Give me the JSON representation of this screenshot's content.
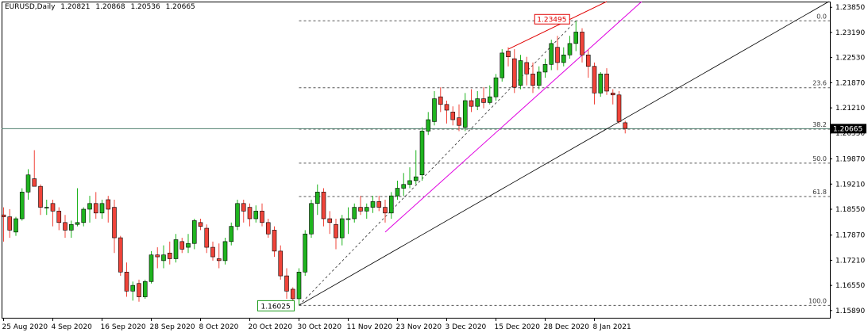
{
  "header": {
    "symbol": "EURUSD,Daily",
    "open": "1.20821",
    "high": "1.20868",
    "low": "1.20536",
    "close": "1.20665"
  },
  "price_scale": {
    "labels": [
      "1.23850",
      "1.23190",
      "1.22530",
      "1.21870",
      "1.21210",
      "1.20550",
      "1.19870",
      "1.19210",
      "1.18550",
      "1.17870",
      "1.17210",
      "1.16550",
      "1.15890"
    ],
    "current_price": "1.20665"
  },
  "time_scale": {
    "labels": [
      "25 Aug 2020",
      "4 Sep 2020",
      "16 Sep 2020",
      "28 Sep 2020",
      "8 Oct 2020",
      "20 Oct 2020",
      "30 Oct 2020",
      "11 Nov 2020",
      "23 Nov 2020",
      "3 Dec 2020",
      "15 Dec 2020",
      "28 Dec 2020",
      "8 Jan 2021"
    ]
  },
  "fibonacci": {
    "levels": [
      {
        "label": "0.0",
        "price": 1.23495
      },
      {
        "label": "23.6",
        "price": 1.21738
      },
      {
        "label": "38.2",
        "price": 1.20652
      },
      {
        "label": "50.0",
        "price": 1.1976
      },
      {
        "label": "61.8",
        "price": 1.18882
      },
      {
        "label": "100.0",
        "price": 1.16025
      }
    ]
  },
  "annotations": {
    "high_label": "1.23495",
    "low_label": "1.16025"
  },
  "colors": {
    "bull": "#1fb41f",
    "bear": "#f0443a",
    "outline": "#000000",
    "fib": "#555555",
    "trend_black": "#000000",
    "trend_magenta": "#e000e0",
    "trend_red": "#e00000",
    "current_line": "#4f7f6f",
    "high_box": "#e00000",
    "low_box": "#1a9a1a"
  },
  "chart_data": {
    "type": "candlestick",
    "timeframe": "Daily",
    "ylim": [
      1.157,
      1.24
    ],
    "candles": [
      {
        "o": 1.184,
        "h": 1.186,
        "l": 1.177,
        "c": 1.1835
      },
      {
        "o": 1.1835,
        "h": 1.1855,
        "l": 1.178,
        "c": 1.18
      },
      {
        "o": 1.1795,
        "h": 1.1835,
        "l": 1.1785,
        "c": 1.183
      },
      {
        "o": 1.183,
        "h": 1.191,
        "l": 1.1825,
        "c": 1.19
      },
      {
        "o": 1.19,
        "h": 1.196,
        "l": 1.188,
        "c": 1.1945
      },
      {
        "o": 1.1935,
        "h": 1.201,
        "l": 1.192,
        "c": 1.1915
      },
      {
        "o": 1.1915,
        "h": 1.192,
        "l": 1.184,
        "c": 1.186
      },
      {
        "o": 1.186,
        "h": 1.188,
        "l": 1.184,
        "c": 1.186
      },
      {
        "o": 1.187,
        "h": 1.188,
        "l": 1.181,
        "c": 1.185
      },
      {
        "o": 1.185,
        "h": 1.186,
        "l": 1.18,
        "c": 1.182
      },
      {
        "o": 1.182,
        "h": 1.184,
        "l": 1.178,
        "c": 1.18
      },
      {
        "o": 1.18,
        "h": 1.1825,
        "l": 1.178,
        "c": 1.1815
      },
      {
        "o": 1.1815,
        "h": 1.191,
        "l": 1.181,
        "c": 1.182
      },
      {
        "o": 1.182,
        "h": 1.186,
        "l": 1.181,
        "c": 1.1855
      },
      {
        "o": 1.1855,
        "h": 1.189,
        "l": 1.182,
        "c": 1.187
      },
      {
        "o": 1.187,
        "h": 1.19,
        "l": 1.183,
        "c": 1.1845
      },
      {
        "o": 1.1845,
        "h": 1.188,
        "l": 1.183,
        "c": 1.187
      },
      {
        "o": 1.188,
        "h": 1.189,
        "l": 1.182,
        "c": 1.1855
      },
      {
        "o": 1.186,
        "h": 1.188,
        "l": 1.174,
        "c": 1.178
      },
      {
        "o": 1.178,
        "h": 1.1785,
        "l": 1.168,
        "c": 1.169
      },
      {
        "o": 1.169,
        "h": 1.1715,
        "l": 1.1625,
        "c": 1.164
      },
      {
        "o": 1.164,
        "h": 1.1665,
        "l": 1.1615,
        "c": 1.1655
      },
      {
        "o": 1.166,
        "h": 1.167,
        "l": 1.1612,
        "c": 1.1625
      },
      {
        "o": 1.1625,
        "h": 1.167,
        "l": 1.162,
        "c": 1.1665
      },
      {
        "o": 1.1665,
        "h": 1.1745,
        "l": 1.166,
        "c": 1.1735
      },
      {
        "o": 1.1735,
        "h": 1.1755,
        "l": 1.17,
        "c": 1.173
      },
      {
        "o": 1.172,
        "h": 1.176,
        "l": 1.17,
        "c": 1.1735
      },
      {
        "o": 1.174,
        "h": 1.177,
        "l": 1.171,
        "c": 1.1725
      },
      {
        "o": 1.1725,
        "h": 1.179,
        "l": 1.1715,
        "c": 1.1775
      },
      {
        "o": 1.177,
        "h": 1.178,
        "l": 1.174,
        "c": 1.175
      },
      {
        "o": 1.1755,
        "h": 1.179,
        "l": 1.174,
        "c": 1.1765
      },
      {
        "o": 1.1765,
        "h": 1.183,
        "l": 1.175,
        "c": 1.1825
      },
      {
        "o": 1.182,
        "h": 1.183,
        "l": 1.18,
        "c": 1.181
      },
      {
        "o": 1.1805,
        "h": 1.1815,
        "l": 1.174,
        "c": 1.1755
      },
      {
        "o": 1.1755,
        "h": 1.177,
        "l": 1.172,
        "c": 1.173
      },
      {
        "o": 1.1725,
        "h": 1.1765,
        "l": 1.17,
        "c": 1.172
      },
      {
        "o": 1.172,
        "h": 1.178,
        "l": 1.171,
        "c": 1.177
      },
      {
        "o": 1.177,
        "h": 1.182,
        "l": 1.176,
        "c": 1.181
      },
      {
        "o": 1.181,
        "h": 1.188,
        "l": 1.18,
        "c": 1.187
      },
      {
        "o": 1.187,
        "h": 1.188,
        "l": 1.182,
        "c": 1.185
      },
      {
        "o": 1.186,
        "h": 1.187,
        "l": 1.181,
        "c": 1.183
      },
      {
        "o": 1.183,
        "h": 1.1865,
        "l": 1.182,
        "c": 1.185
      },
      {
        "o": 1.185,
        "h": 1.187,
        "l": 1.181,
        "c": 1.182
      },
      {
        "o": 1.182,
        "h": 1.183,
        "l": 1.178,
        "c": 1.179
      },
      {
        "o": 1.18,
        "h": 1.181,
        "l": 1.173,
        "c": 1.1745
      },
      {
        "o": 1.1745,
        "h": 1.176,
        "l": 1.167,
        "c": 1.168
      },
      {
        "o": 1.168,
        "h": 1.17,
        "l": 1.162,
        "c": 1.164
      },
      {
        "o": 1.1645,
        "h": 1.165,
        "l": 1.1605,
        "c": 1.162
      },
      {
        "o": 1.162,
        "h": 1.17,
        "l": 1.1603,
        "c": 1.169
      },
      {
        "o": 1.169,
        "h": 1.18,
        "l": 1.168,
        "c": 1.179
      },
      {
        "o": 1.179,
        "h": 1.188,
        "l": 1.178,
        "c": 1.187
      },
      {
        "o": 1.187,
        "h": 1.192,
        "l": 1.184,
        "c": 1.19
      },
      {
        "o": 1.19,
        "h": 1.191,
        "l": 1.181,
        "c": 1.183
      },
      {
        "o": 1.183,
        "h": 1.185,
        "l": 1.179,
        "c": 1.182
      },
      {
        "o": 1.1815,
        "h": 1.183,
        "l": 1.175,
        "c": 1.178
      },
      {
        "o": 1.178,
        "h": 1.184,
        "l": 1.176,
        "c": 1.183
      },
      {
        "o": 1.183,
        "h": 1.186,
        "l": 1.179,
        "c": 1.183
      },
      {
        "o": 1.183,
        "h": 1.187,
        "l": 1.182,
        "c": 1.186
      },
      {
        "o": 1.186,
        "h": 1.189,
        "l": 1.184,
        "c": 1.185
      },
      {
        "o": 1.185,
        "h": 1.187,
        "l": 1.183,
        "c": 1.186
      },
      {
        "o": 1.186,
        "h": 1.189,
        "l": 1.1845,
        "c": 1.1875
      },
      {
        "o": 1.1875,
        "h": 1.189,
        "l": 1.185,
        "c": 1.186
      },
      {
        "o": 1.186,
        "h": 1.188,
        "l": 1.182,
        "c": 1.1845
      },
      {
        "o": 1.1845,
        "h": 1.19,
        "l": 1.183,
        "c": 1.189
      },
      {
        "o": 1.189,
        "h": 1.193,
        "l": 1.188,
        "c": 1.191
      },
      {
        "o": 1.191,
        "h": 1.195,
        "l": 1.189,
        "c": 1.192
      },
      {
        "o": 1.192,
        "h": 1.1965,
        "l": 1.191,
        "c": 1.193
      },
      {
        "o": 1.193,
        "h": 1.201,
        "l": 1.192,
        "c": 1.194
      },
      {
        "o": 1.1945,
        "h": 1.207,
        "l": 1.193,
        "c": 1.206
      },
      {
        "o": 1.206,
        "h": 1.211,
        "l": 1.205,
        "c": 1.209
      },
      {
        "o": 1.2085,
        "h": 1.2165,
        "l": 1.2075,
        "c": 1.2145
      },
      {
        "o": 1.215,
        "h": 1.2175,
        "l": 1.211,
        "c": 1.213
      },
      {
        "o": 1.213,
        "h": 1.214,
        "l": 1.208,
        "c": 1.2115
      },
      {
        "o": 1.211,
        "h": 1.2125,
        "l": 1.2075,
        "c": 1.209
      },
      {
        "o": 1.2095,
        "h": 1.213,
        "l": 1.206,
        "c": 1.2075
      },
      {
        "o": 1.207,
        "h": 1.216,
        "l": 1.206,
        "c": 1.214
      },
      {
        "o": 1.214,
        "h": 1.217,
        "l": 1.211,
        "c": 1.2125
      },
      {
        "o": 1.2125,
        "h": 1.2165,
        "l": 1.2115,
        "c": 1.2145
      },
      {
        "o": 1.2145,
        "h": 1.2175,
        "l": 1.212,
        "c": 1.2135
      },
      {
        "o": 1.2135,
        "h": 1.218,
        "l": 1.213,
        "c": 1.215
      },
      {
        "o": 1.215,
        "h": 1.221,
        "l": 1.214,
        "c": 1.22
      },
      {
        "o": 1.22,
        "h": 1.2275,
        "l": 1.219,
        "c": 1.2265
      },
      {
        "o": 1.227,
        "h": 1.228,
        "l": 1.223,
        "c": 1.2255
      },
      {
        "o": 1.225,
        "h": 1.2275,
        "l": 1.216,
        "c": 1.2175
      },
      {
        "o": 1.218,
        "h": 1.226,
        "l": 1.217,
        "c": 1.2245
      },
      {
        "o": 1.224,
        "h": 1.2255,
        "l": 1.218,
        "c": 1.221
      },
      {
        "o": 1.221,
        "h": 1.224,
        "l": 1.216,
        "c": 1.218
      },
      {
        "o": 1.218,
        "h": 1.223,
        "l": 1.217,
        "c": 1.2215
      },
      {
        "o": 1.2215,
        "h": 1.225,
        "l": 1.22,
        "c": 1.2235
      },
      {
        "o": 1.2235,
        "h": 1.23,
        "l": 1.222,
        "c": 1.229
      },
      {
        "o": 1.228,
        "h": 1.231,
        "l": 1.222,
        "c": 1.224
      },
      {
        "o": 1.224,
        "h": 1.228,
        "l": 1.223,
        "c": 1.226
      },
      {
        "o": 1.226,
        "h": 1.231,
        "l": 1.225,
        "c": 1.229
      },
      {
        "o": 1.229,
        "h": 1.2349,
        "l": 1.227,
        "c": 1.232
      },
      {
        "o": 1.232,
        "h": 1.233,
        "l": 1.224,
        "c": 1.226
      },
      {
        "o": 1.226,
        "h": 1.2275,
        "l": 1.22,
        "c": 1.223
      },
      {
        "o": 1.223,
        "h": 1.224,
        "l": 1.213,
        "c": 1.216
      },
      {
        "o": 1.216,
        "h": 1.2215,
        "l": 1.215,
        "c": 1.221
      },
      {
        "o": 1.221,
        "h": 1.2225,
        "l": 1.2155,
        "c": 1.2165
      },
      {
        "o": 1.216,
        "h": 1.217,
        "l": 1.213,
        "c": 1.2155
      },
      {
        "o": 1.2155,
        "h": 1.2165,
        "l": 1.208,
        "c": 1.2085
      },
      {
        "o": 1.2082,
        "h": 1.2087,
        "l": 1.2054,
        "c": 1.2067
      }
    ]
  }
}
